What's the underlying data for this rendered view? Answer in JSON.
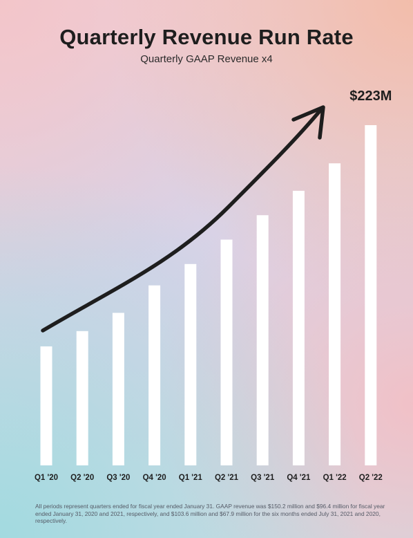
{
  "chart_data": {
    "type": "bar",
    "title": "Quarterly Revenue Run Rate",
    "subtitle": "Quarterly GAAP Revenue x4",
    "categories": [
      "Q1 '20",
      "Q2 '20",
      "Q3 '20",
      "Q4 '20",
      "Q1 '21",
      "Q2 '21",
      "Q3 '21",
      "Q4 '21",
      "Q1 '22",
      "Q2 '22"
    ],
    "values": [
      78,
      88,
      100,
      118,
      132,
      148,
      164,
      180,
      198,
      223
    ],
    "ylim": [
      0,
      223
    ],
    "grid": false,
    "annotation": {
      "label": "$223M",
      "category": "Q2 '22"
    },
    "trend_arrow": true,
    "bar_color": "#ffffff"
  },
  "footnote": "All periods represent quarters ended for fiscal year ended January 31. GAAP revenue was $150.2 million and $96.4 million for fiscal year ended January 31, 2020 and 2021, respectively, and $103.6 million and $67.9 million for the six months ended July 31, 2021 and 2020, respectively."
}
